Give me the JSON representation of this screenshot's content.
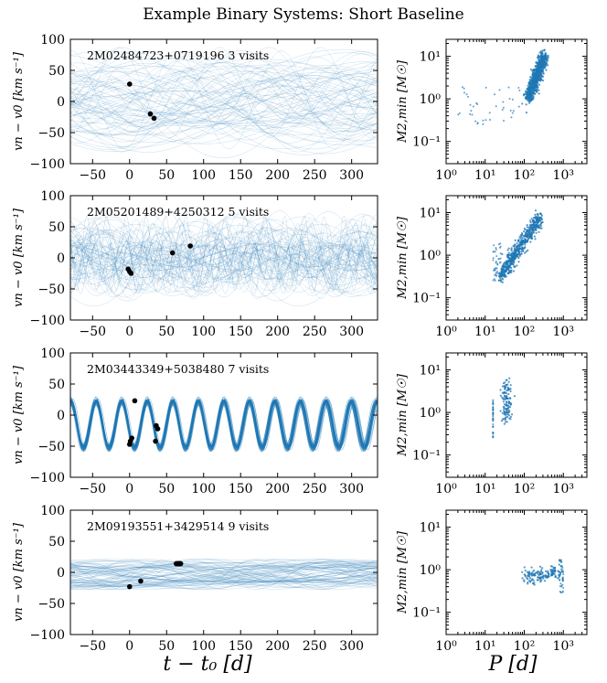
{
  "figure_title": "Example Binary Systems: Short Baseline",
  "colors": {
    "curve": "#1f77b4",
    "point": "#000000",
    "scatter": "#1f77b4"
  },
  "chart_data": [
    {
      "type": "line",
      "name": "rv-2M02484723",
      "annotation": "2M02484723+0719196  3 visits",
      "xlabel": "t − t0 [d]",
      "ylabel": "vn − v0 [km s⁻¹]",
      "xlim": [
        -80,
        335
      ],
      "ylim": [
        -100,
        100
      ],
      "xticks": [
        -50,
        0,
        50,
        100,
        150,
        200,
        250,
        300
      ],
      "yticks": [
        -100,
        -50,
        0,
        50,
        100
      ],
      "points": [
        [
          0,
          28
        ],
        [
          28,
          -20
        ],
        [
          33,
          -27
        ]
      ],
      "curve_family": {
        "kind": "long-period-spread",
        "mean": 0,
        "amp_range": [
          15,
          80
        ]
      }
    },
    {
      "type": "line",
      "name": "rv-2M05201489",
      "annotation": "2M05201489+4250312  5 visits",
      "xlabel": "t − t0 [d]",
      "ylabel": "vn − v0 [km s⁻¹]",
      "xlim": [
        -80,
        335
      ],
      "ylim": [
        -100,
        100
      ],
      "xticks": [
        -50,
        0,
        50,
        100,
        150,
        200,
        250,
        300
      ],
      "yticks": [
        -100,
        -50,
        0,
        50,
        100
      ],
      "points": [
        [
          -2,
          -18
        ],
        [
          0,
          -22
        ],
        [
          2,
          -25
        ],
        [
          58,
          8
        ],
        [
          82,
          19
        ]
      ],
      "curve_family": {
        "kind": "multi-period",
        "mean": 0,
        "amp_range": [
          10,
          70
        ]
      }
    },
    {
      "type": "line",
      "name": "rv-2M03443349",
      "annotation": "2M03443349+5038480  7 visits",
      "xlabel": "t − t0 [d]",
      "ylabel": "vn − v0 [km s⁻¹]",
      "xlim": [
        -80,
        335
      ],
      "ylim": [
        -100,
        100
      ],
      "xticks": [
        -50,
        0,
        50,
        100,
        150,
        200,
        250,
        300
      ],
      "yticks": [
        -100,
        -50,
        0,
        50,
        100
      ],
      "points": [
        [
          0,
          -47
        ],
        [
          1,
          -42
        ],
        [
          3,
          -37
        ],
        [
          7,
          23
        ],
        [
          36,
          -17
        ],
        [
          38,
          -22
        ],
        [
          35,
          -42
        ]
      ],
      "curve_family": {
        "kind": "periodic",
        "period": 34.5,
        "mean": -15,
        "amp": 38
      }
    },
    {
      "type": "line",
      "name": "rv-2M09193551",
      "annotation": "2M09193551+3429514  9 visits",
      "xlabel": "t − t0 [d]",
      "ylabel": "vn − v0 [km s⁻¹]",
      "xlim": [
        -80,
        335
      ],
      "ylim": [
        -100,
        100
      ],
      "xticks": [
        -50,
        0,
        50,
        100,
        150,
        200,
        250,
        300
      ],
      "yticks": [
        -100,
        -50,
        0,
        50,
        100
      ],
      "points": [
        [
          0,
          -23
        ],
        [
          15,
          -14
        ],
        [
          63,
          14
        ],
        [
          64,
          14
        ],
        [
          65,
          14
        ],
        [
          66,
          14
        ],
        [
          67,
          14
        ],
        [
          68,
          14
        ],
        [
          69,
          14
        ]
      ],
      "curve_family": {
        "kind": "long-period",
        "period_range": [
          120,
          900
        ],
        "mean": -3,
        "amp": 18
      }
    },
    {
      "type": "scatter",
      "name": "mass-period-1",
      "xlabel": "P [d]",
      "ylabel": "M2,min [M☉]",
      "xscale": "log",
      "yscale": "log",
      "xlim": [
        1,
        4000
      ],
      "ylim": [
        0.03,
        25
      ],
      "cluster": {
        "logP_center": [
          2.1,
          2.5
        ],
        "logM_center": [
          0.0,
          1.0
        ],
        "n": 700,
        "tail_logP": [
          0.3,
          1.9
        ]
      }
    },
    {
      "type": "scatter",
      "name": "mass-period-2",
      "xlabel": "P [d]",
      "ylabel": "M2,min [M☉]",
      "xscale": "log",
      "yscale": "log",
      "xlim": [
        1,
        4000
      ],
      "ylim": [
        0.03,
        25
      ],
      "cluster": {
        "logP_center": [
          1.4,
          2.4
        ],
        "logM_center": [
          -0.5,
          0.9
        ],
        "n": 600,
        "tail_logP": [
          1.2,
          1.4
        ]
      }
    },
    {
      "type": "scatter",
      "name": "mass-period-3",
      "xlabel": "P [d]",
      "ylabel": "M2,min [M☉]",
      "xscale": "log",
      "yscale": "log",
      "xlim": [
        1,
        4000
      ],
      "ylim": [
        0.03,
        25
      ],
      "cluster": {
        "logP_center": [
          1.54,
          1.54
        ],
        "logM_center": [
          -0.15,
          0.7
        ],
        "n": 120,
        "tail_logP": [
          1.2,
          1.2
        ]
      }
    },
    {
      "type": "scatter",
      "name": "mass-period-4",
      "xlabel": "P [d]",
      "ylabel": "M2,min [M☉]",
      "xscale": "log",
      "yscale": "log",
      "xlim": [
        1,
        4000
      ],
      "ylim": [
        0.03,
        25
      ],
      "cluster": {
        "logP_center": [
          2.0,
          2.9
        ],
        "logM_center": [
          -0.2,
          -0.05
        ],
        "n": 150,
        "tail_logP": [
          2.9,
          3.0
        ]
      }
    }
  ],
  "xlabel_left": "t − t₀ [d]",
  "xlabel_right": "P [d]"
}
